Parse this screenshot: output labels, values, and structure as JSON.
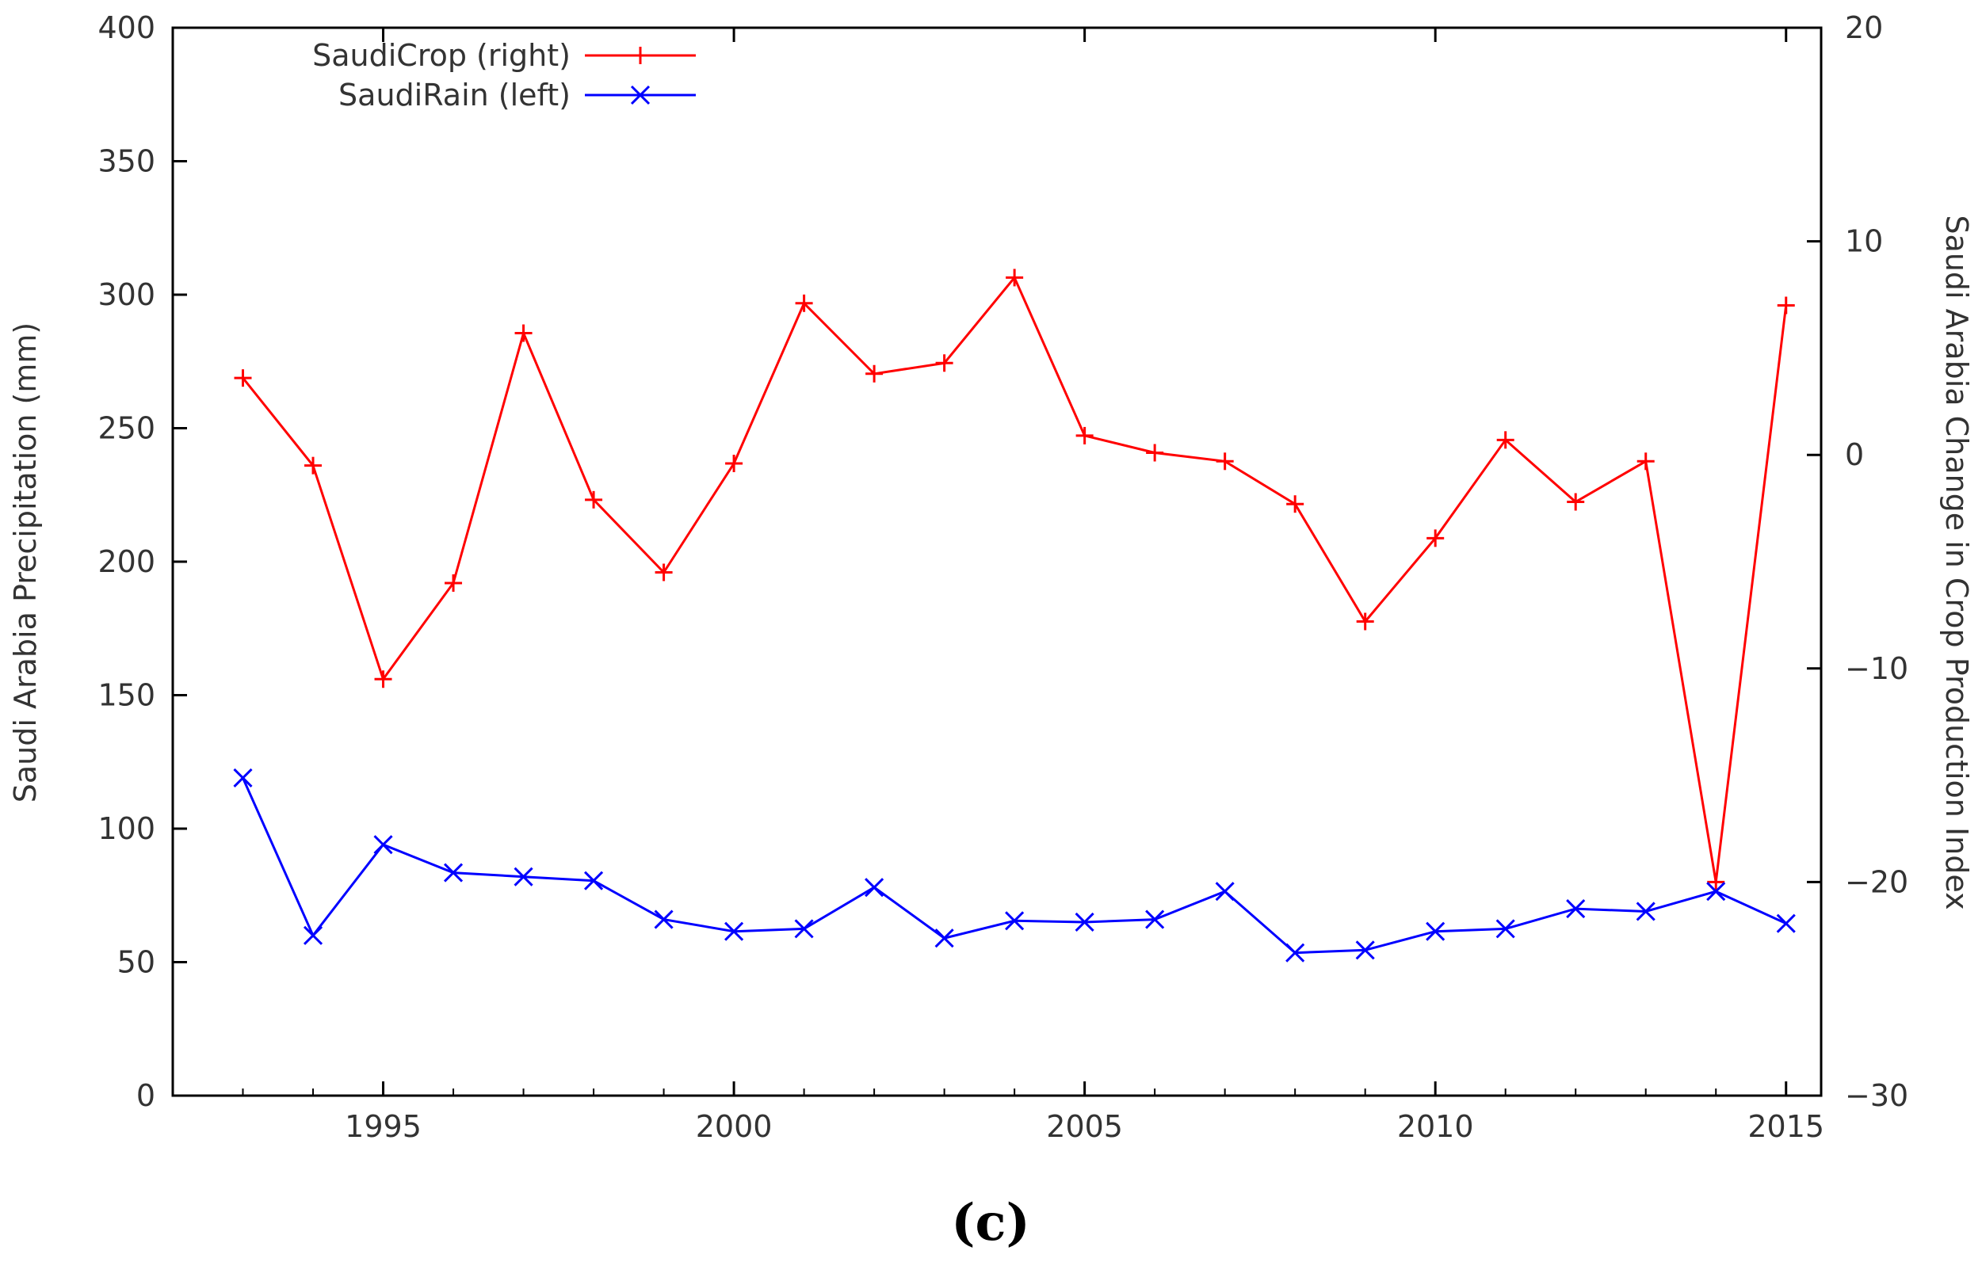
{
  "chart_data": {
    "type": "line",
    "x": [
      1993,
      1994,
      1995,
      1996,
      1997,
      1998,
      1999,
      2000,
      2001,
      2002,
      2003,
      2004,
      2005,
      2006,
      2007,
      2008,
      2009,
      2010,
      2011,
      2012,
      2013,
      2014,
      2015
    ],
    "xlim": [
      1992,
      2015.5
    ],
    "xticks": [
      "1995",
      "2000",
      "2005",
      "2010",
      "2015"
    ],
    "ylabel_left": "Saudi Arabia Precipitation (mm)",
    "ylabel_right": "Saudi Arabia Change in Crop Production Index",
    "ylim_left": [
      0,
      400
    ],
    "ylim_right": [
      -30,
      20
    ],
    "yticks_left": [
      "0",
      "50",
      "100",
      "150",
      "200",
      "250",
      "300",
      "350",
      "400"
    ],
    "yticks_right": [
      "-30",
      "-20",
      "-10",
      "0",
      "10",
      "20"
    ],
    "grid": false,
    "legend_position": "top-left",
    "series": [
      {
        "name": "SaudiCrop  (right)",
        "axis": "right",
        "color": "#ff0000",
        "marker": "plus",
        "values": [
          3.6,
          -0.5,
          -10.5,
          -6,
          5.7,
          -2.1,
          -5.5,
          -0.4,
          7.1,
          3.8,
          4.3,
          8.3,
          0.9,
          0.1,
          -0.3,
          -2.3,
          -7.8,
          -3.9,
          0.7,
          -2.2,
          -0.3,
          -20.0,
          7.0
        ]
      },
      {
        "name": "SaudiRain  (left)",
        "axis": "left",
        "color": "#0000ff",
        "marker": "x",
        "values": [
          119,
          60,
          94,
          83.5,
          82,
          80.5,
          66,
          61.5,
          62.5,
          78,
          59,
          65.5,
          65,
          66,
          76.5,
          53.5,
          54.5,
          61.5,
          62.5,
          70,
          69,
          76.5,
          64.5
        ]
      }
    ]
  },
  "figure": {
    "panel_label": "(c)"
  }
}
